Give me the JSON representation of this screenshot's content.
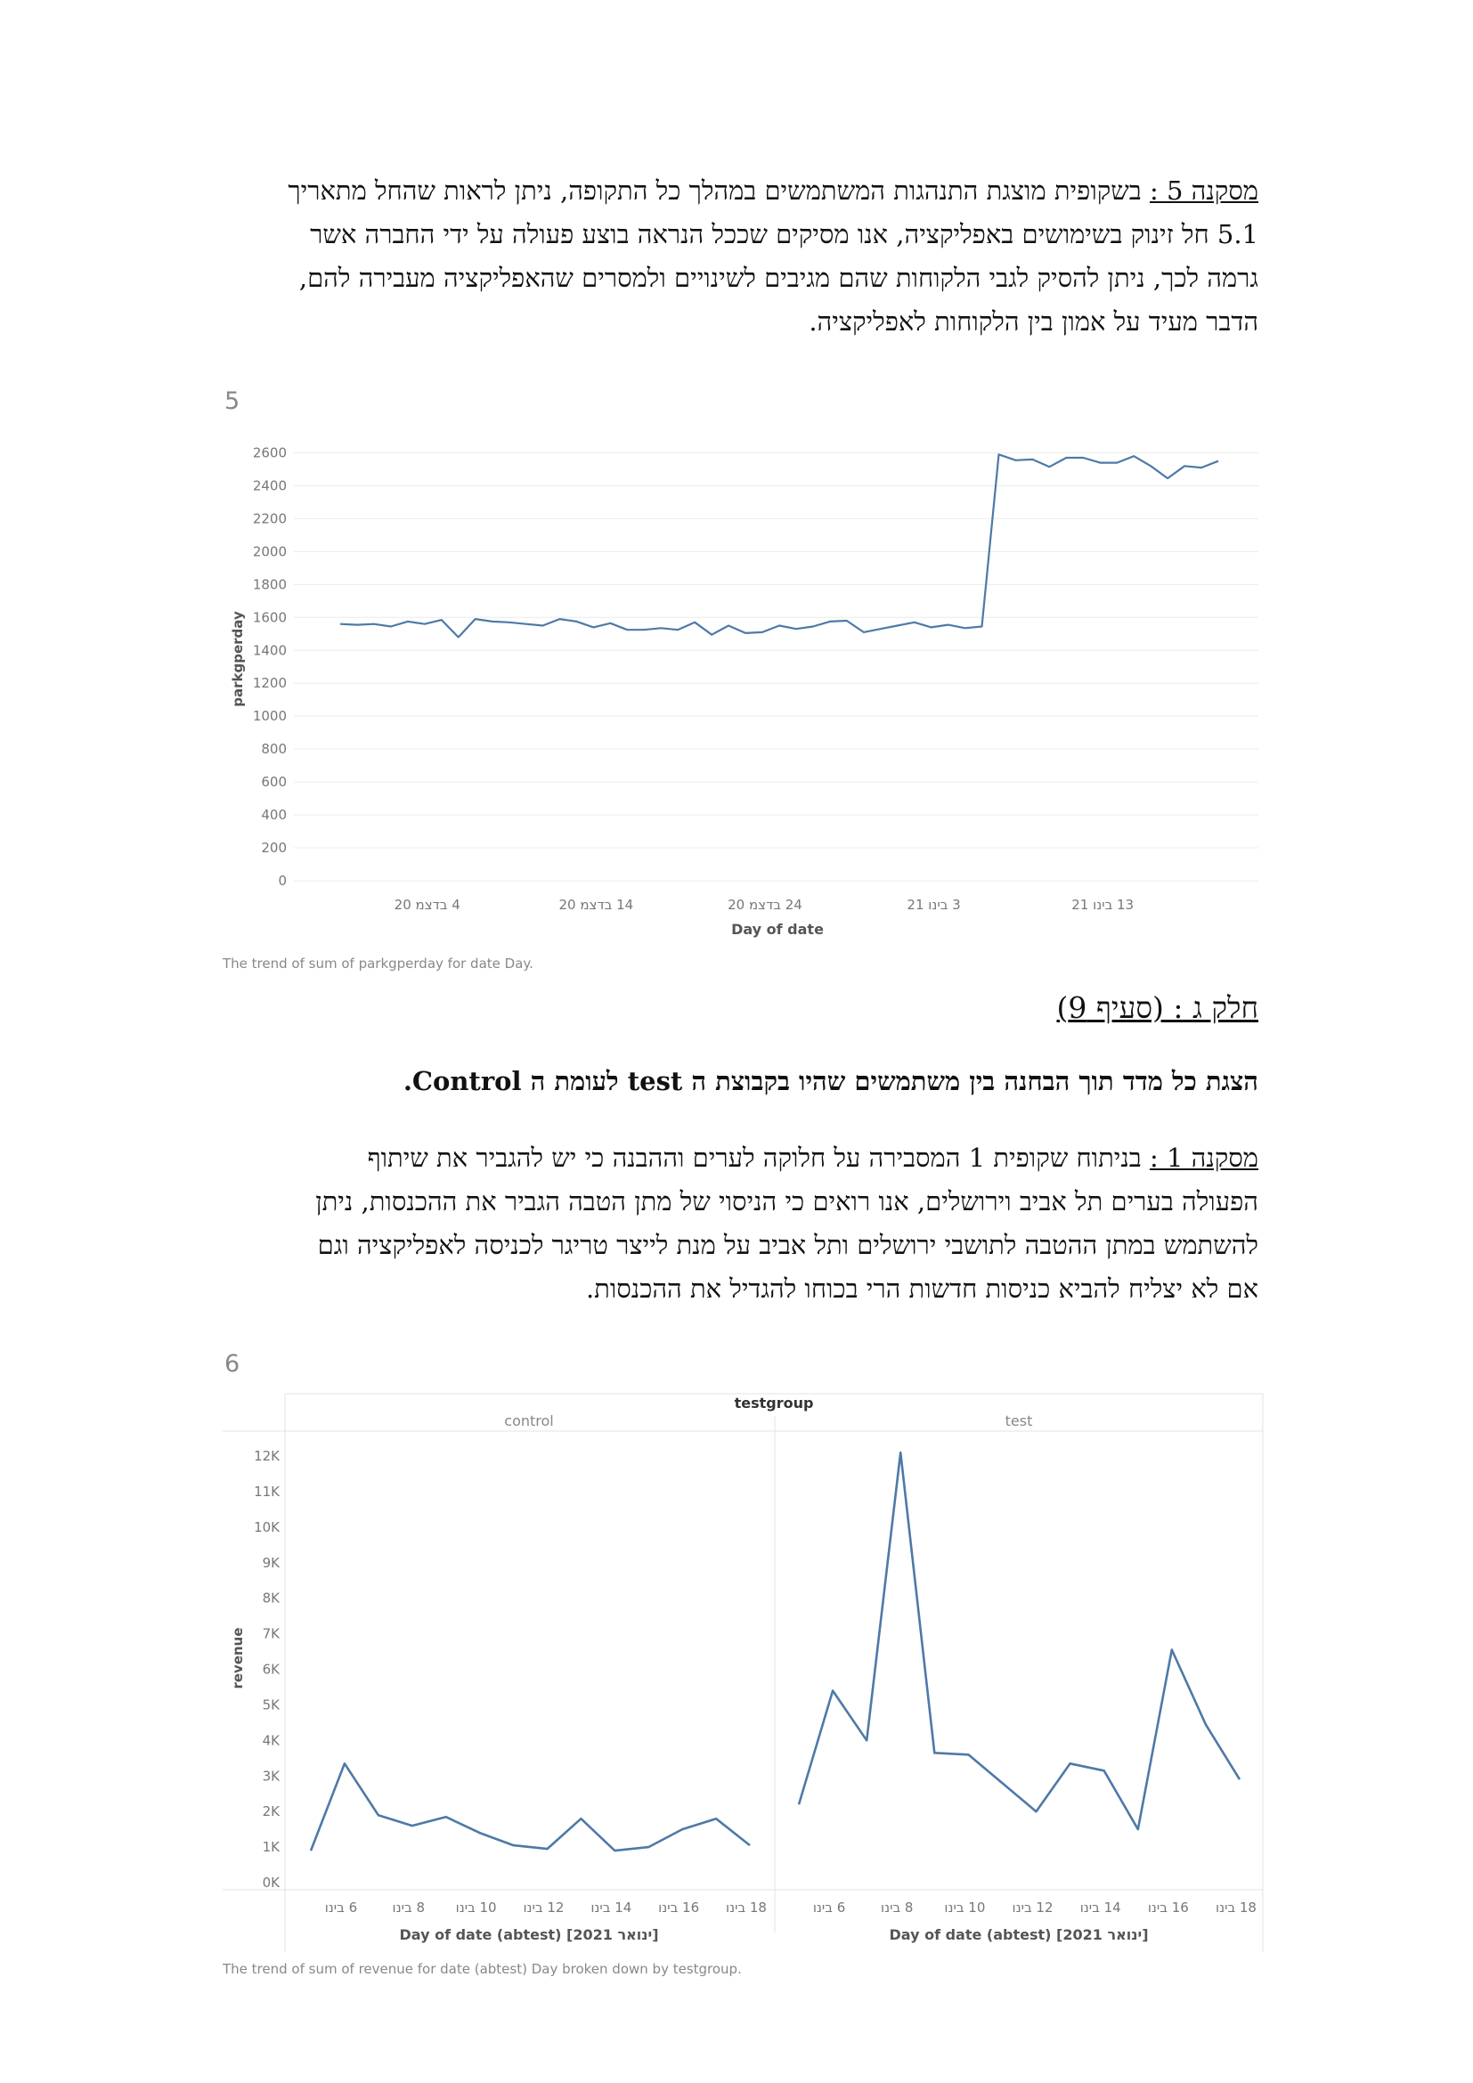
{
  "conclusion5": {
    "label": "מסקנה 5 :",
    "text": " בשקופית מוצגת התנהגות המשתמשים במהלך כל התקופה, ניתן לראות שהחל מתאריך 5.1 חל זינוק בשימושים באפליקציה, אנו מסיקים שככל הנראה בוצע פעולה על ידי החברה אשר גרמה לכך, ניתן להסיק לגבי הלקוחות שהם מגיבים לשינויים ולמסרים שהאפליקציה מעבירה להם, הדבר מעיד על אמון בין הלקוחות לאפליקציה."
  },
  "figure5": {
    "number": "5",
    "caption": "The trend of sum of parkgperday for date Day."
  },
  "section_title": "חלק ג : (סעיף 9)",
  "bold_line": "הצגת כל מדד תוך הבחנה בין משתמשים שהיו בקבוצת ה test לעומת ה Control.",
  "conclusion1": {
    "label": "מסקנה 1 :",
    "text": " בניתוח שקופית 1 המסבירה על חלוקה לערים וההבנה כי יש להגביר את שיתוף הפעולה בערים תל אביב וירושלים, אנו רואים כי  הניסוי של מתן הטבה הגביר את ההכנסות, ניתן להשתמש במתן ההטבה לתושבי ירושלים ותל אביב על מנת לייצר טריגר לכניסה לאפליקציה וגם אם לא יצליח להביא כניסות חדשות הרי בכוחו להגדיל את ההכנסות."
  },
  "figure6": {
    "number": "6",
    "caption": "The trend of sum of revenue for date (abtest) Day broken down by testgroup."
  },
  "chart_data": [
    {
      "type": "line",
      "ylabel": "parkgperday",
      "xlabel": "Day of date",
      "ylim": [
        0,
        2700
      ],
      "yticks": [
        "2600",
        "2400",
        "2200",
        "2000",
        "1800",
        "1600",
        "1400",
        "1200",
        "1000",
        "800",
        "600",
        "400",
        "200",
        "0"
      ],
      "xticks": [
        "4 בדצמ 20",
        "14 בדצמ 20",
        "24 בדצמ 20",
        "3 בינו 21",
        "13 בינו 21"
      ],
      "grid": true,
      "line_color": "#4e79a7",
      "series": [
        {
          "values": [
            1560,
            1555,
            1560,
            1545,
            1575,
            1560,
            1585,
            1480,
            1590,
            1575,
            1570,
            1560,
            1550,
            1590,
            1575,
            1540,
            1565,
            1525,
            1525,
            1535,
            1525,
            1570,
            1495,
            1550,
            1505,
            1510,
            1550,
            1530,
            1545,
            1575,
            1580,
            1510,
            1530,
            1550,
            1570,
            1540,
            1555,
            1535,
            1545,
            2590,
            2555,
            2560,
            2515,
            2570,
            2570,
            2540,
            2540,
            2580,
            2520,
            2445,
            2520,
            2510,
            2550
          ]
        }
      ]
    },
    {
      "type": "line",
      "title": "testgroup",
      "ylabel": "revenue",
      "xlabel": "Day of date (abtest) [ינואר 2021]",
      "ylim": [
        0,
        12400
      ],
      "yticks": [
        "12K",
        "11K",
        "10K",
        "9K",
        "8K",
        "7K",
        "6K",
        "5K",
        "4K",
        "3K",
        "2K",
        "1K",
        "0K"
      ],
      "xticks": [
        "6 בינו",
        "8 בינו",
        "10 בינו",
        "12 בינו",
        "14 בינו",
        "16 בינו",
        "18 בינו"
      ],
      "line_color": "#4e79a7",
      "panels": [
        {
          "name": "control",
          "x": [
            5,
            6,
            7,
            8,
            9,
            10,
            11,
            12,
            13,
            14,
            15,
            16,
            17,
            18
          ],
          "values": [
            900,
            3350,
            1900,
            1600,
            1850,
            1400,
            1050,
            950,
            1800,
            900,
            1000,
            1500,
            1800,
            1050
          ]
        },
        {
          "name": "test",
          "x": [
            5,
            6,
            7,
            8,
            9,
            10,
            11,
            12,
            13,
            14,
            15,
            16,
            17,
            18
          ],
          "values": [
            2200,
            5400,
            4000,
            12100,
            3650,
            3600,
            2800,
            2000,
            3350,
            3150,
            1500,
            6550,
            4450,
            2900
          ]
        }
      ]
    }
  ]
}
